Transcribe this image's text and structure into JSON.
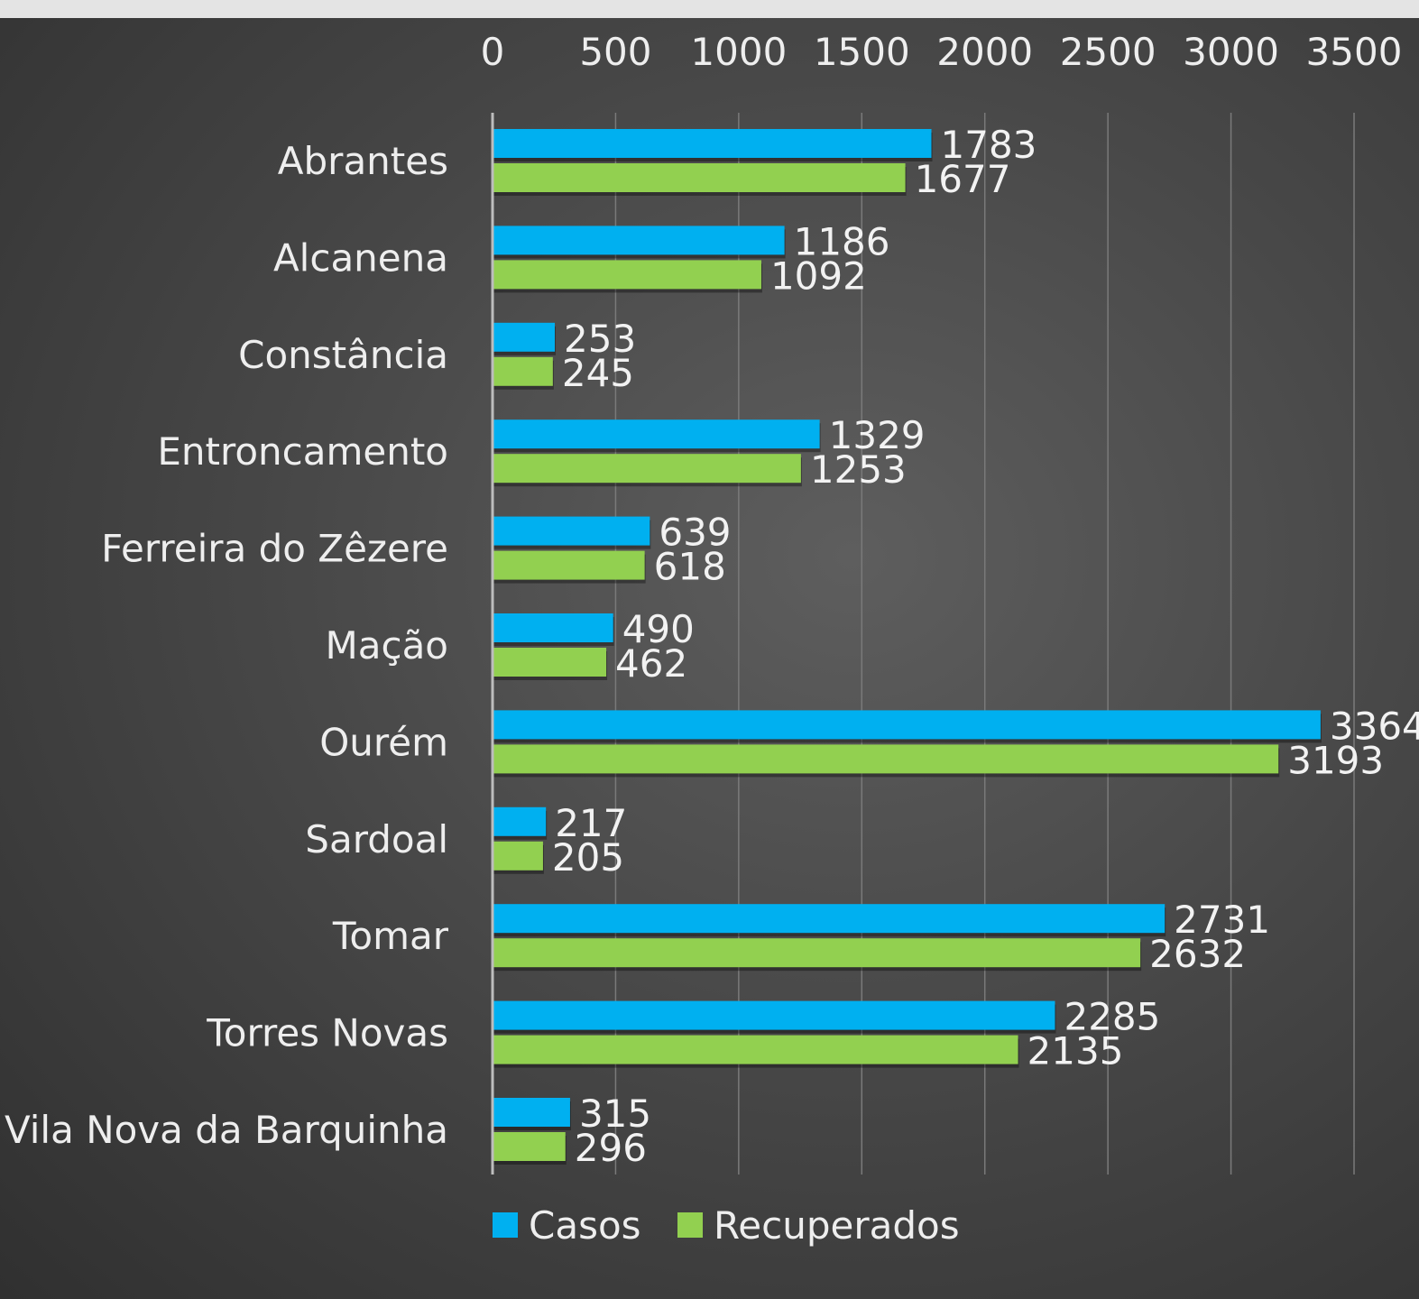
{
  "chart_data": {
    "type": "bar",
    "orientation": "horizontal",
    "title": "",
    "xlabel": "",
    "ylabel": "",
    "xlim": [
      0,
      3500
    ],
    "x_ticks": [
      0,
      500,
      1000,
      1500,
      2000,
      2500,
      3000,
      3500
    ],
    "x_axis_position": "top",
    "grid": true,
    "legend_position": "bottom",
    "categories": [
      "Abrantes",
      "Alcanena",
      "Constância",
      "Entroncamento",
      "Ferreira do Zêzere",
      "Mação",
      "Ourém",
      "Sardoal",
      "Tomar",
      "Torres Novas",
      "Vila Nova da Barquinha"
    ],
    "series": [
      {
        "name": "Casos",
        "color": "#00b0f0",
        "values": [
          1783,
          1186,
          253,
          1329,
          639,
          490,
          3364,
          217,
          2731,
          2285,
          315
        ]
      },
      {
        "name": "Recuperados",
        "color": "#92d050",
        "values": [
          1677,
          1092,
          245,
          1253,
          618,
          462,
          3193,
          205,
          2632,
          2135,
          296
        ]
      }
    ],
    "background_color": "#3f3f3f",
    "text_color": "#eeeeee"
  }
}
